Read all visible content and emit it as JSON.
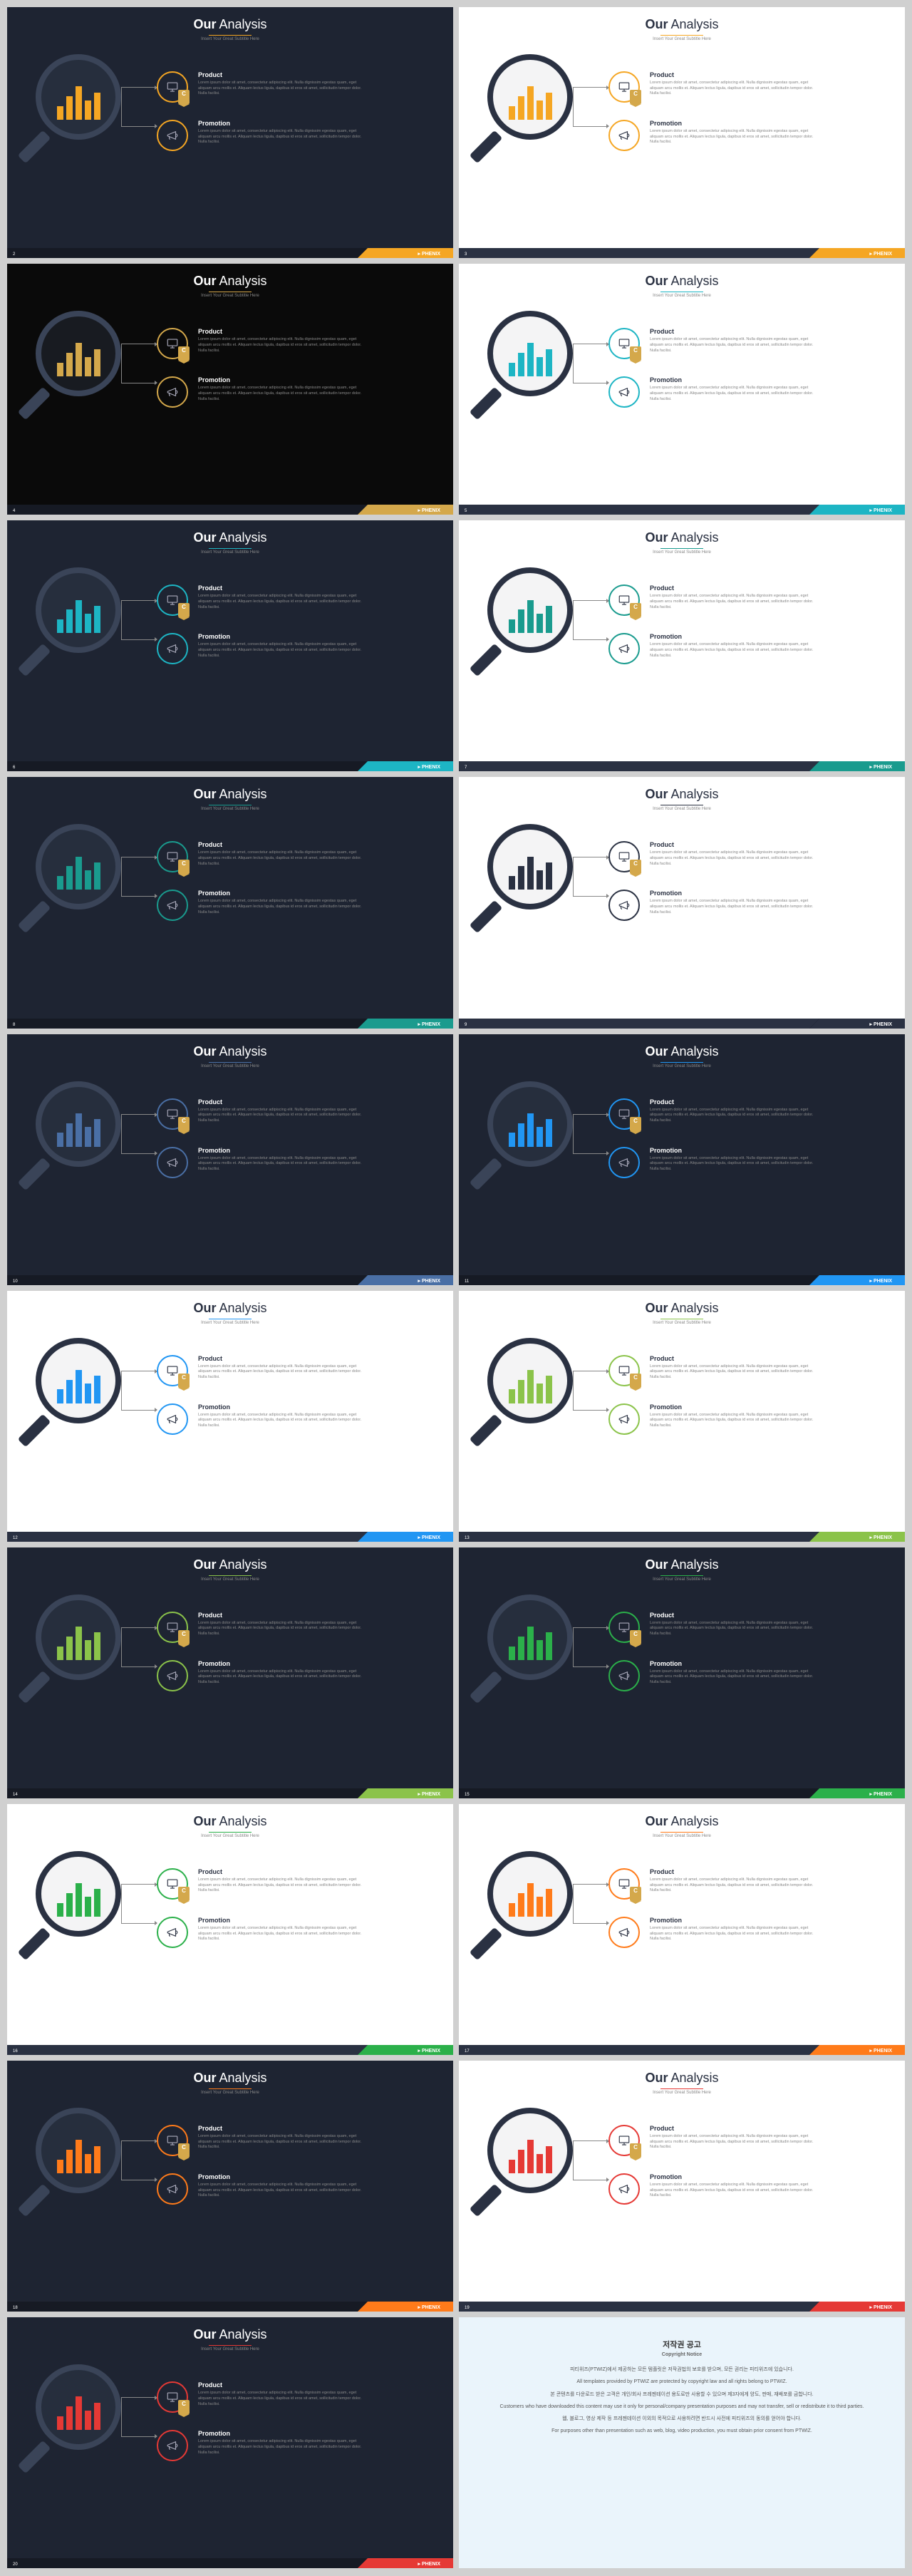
{
  "title_bold": "Our",
  "title_light": " Analysis",
  "subtitle": "Insert Your Great Subtitle Here",
  "item1": {
    "h": "Product",
    "p": "Lorem ipsum dolor sit amet, consectetur adipiscing elit. Nulla dignissim egestas quam, eget aliquam arcu mollis et. Aliquam lectus ligula, dapibus id eros sit amet, sollicitudin tempor dolor. Nulla facilisi."
  },
  "item2": {
    "h": "Promotion",
    "p": "Lorem ipsum dolor sit amet, consectetur adipiscing elit. Nulla dignissim egestas quam, eget aliquam arcu mollis et. Aliquam lectus ligula, dapibus id eros sit amet, sollicitudin tempor dolor. Nulla facilisi."
  },
  "brand": "PHENIX",
  "bars": [
    0.35,
    0.6,
    0.85,
    0.5,
    0.7
  ],
  "notice": {
    "h": "저작권 공고",
    "h2": "Copyright Notice",
    "lines": [
      "피티위즈(PTWIZ)에서 제공하는 모든 템플릿은 저작권법의 보호를 받으며, 모든 권리는 피티위즈에 있습니다.",
      "All templates provided by PTWIZ are protected by copyright law and all rights belong to PTWIZ.",
      "본 콘텐츠를 다운로드 받은 고객은 개인/회사 프레젠테이션 용도로만 사용할 수 있으며 제3자에게 양도, 판매, 재배포를 금합니다.",
      "Customers who have downloaded this content may use it only for personal/company presentation purposes and may not transfer, sell or redistribute it to third parties.",
      "웹, 블로그, 영상 제작 등 프레젠테이션 이외의 목적으로 사용하려면 반드시 사전에 피티위즈의 동의를 얻어야 합니다.",
      "For purposes other than presentation such as web, blog, video production, you must obtain prior consent from PTWIZ."
    ]
  },
  "variants": [
    {
      "theme": "dark",
      "accent": "#f5a623",
      "n": 2
    },
    {
      "theme": "light",
      "accent": "#f5a623",
      "n": 3
    },
    {
      "theme": "black",
      "accent": "#d4a84b",
      "n": 4
    },
    {
      "theme": "light",
      "accent": "#1db5c4",
      "n": 5
    },
    {
      "theme": "dark",
      "accent": "#1db5c4",
      "n": 6
    },
    {
      "theme": "light",
      "accent": "#1a9b8e",
      "n": 7
    },
    {
      "theme": "dark",
      "accent": "#1a9b8e",
      "n": 8
    },
    {
      "theme": "light",
      "accent": "#2a3142",
      "n": 9
    },
    {
      "theme": "dark",
      "accent": "#4a6fa5",
      "n": 10
    },
    {
      "theme": "dark",
      "accent": "#2196f3",
      "n": 11
    },
    {
      "theme": "light",
      "accent": "#2196f3",
      "n": 12
    },
    {
      "theme": "light",
      "accent": "#8bc34a",
      "n": 13
    },
    {
      "theme": "dark",
      "accent": "#8bc34a",
      "n": 14
    },
    {
      "theme": "dark",
      "accent": "#2bb04a",
      "n": 15
    },
    {
      "theme": "light",
      "accent": "#2bb04a",
      "n": 16
    },
    {
      "theme": "light",
      "accent": "#ff7b1a",
      "n": 17
    },
    {
      "theme": "dark",
      "accent": "#ff7b1a",
      "n": 18
    },
    {
      "theme": "light",
      "accent": "#e53935",
      "n": 19
    },
    {
      "theme": "dark",
      "accent": "#e53935",
      "n": 20
    }
  ]
}
